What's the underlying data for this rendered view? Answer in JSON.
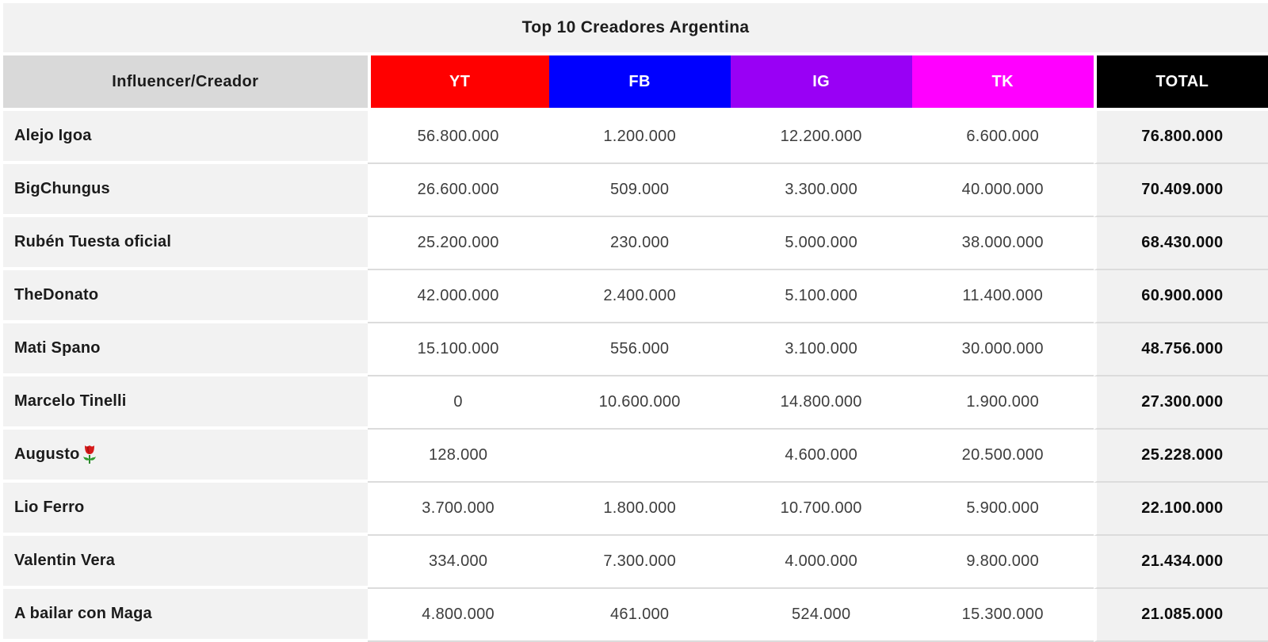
{
  "table": {
    "title": "Top 10 Creadores Argentina",
    "columns": [
      {
        "key": "name",
        "label": "Influencer/Creador",
        "bg": "#d9d9d9",
        "fg": "#1b1b1b"
      },
      {
        "key": "yt",
        "label": "YT",
        "bg": "#ff0000",
        "fg": "#ffffff"
      },
      {
        "key": "fb",
        "label": "FB",
        "bg": "#0000ff",
        "fg": "#ffffff"
      },
      {
        "key": "ig",
        "label": "IG",
        "bg": "#9900f5",
        "fg": "#ffffff"
      },
      {
        "key": "tk",
        "label": "TK",
        "bg": "#ff00ff",
        "fg": "#ffffff"
      },
      {
        "key": "total",
        "label": "TOTAL",
        "bg": "#000000",
        "fg": "#ffffff"
      }
    ],
    "rows": [
      {
        "name": "Alejo Igoa",
        "yt": "56.800.000",
        "fb": "1.200.000",
        "ig": "12.200.000",
        "tk": "6.600.000",
        "total": "76.800.000"
      },
      {
        "name": "BigChungus",
        "yt": "26.600.000",
        "fb": "509.000",
        "ig": "3.300.000",
        "tk": "40.000.000",
        "total": "70.409.000"
      },
      {
        "name": "Rubén Tuesta oficial",
        "yt": "25.200.000",
        "fb": "230.000",
        "ig": "5.000.000",
        "tk": "38.000.000",
        "total": "68.430.000"
      },
      {
        "name": "TheDonato",
        "yt": "42.000.000",
        "fb": "2.400.000",
        "ig": "5.100.000",
        "tk": "11.400.000",
        "total": "60.900.000"
      },
      {
        "name": "Mati Spano",
        "yt": "15.100.000",
        "fb": "556.000",
        "ig": "3.100.000",
        "tk": "30.000.000",
        "total": "48.756.000"
      },
      {
        "name": "Marcelo Tinelli",
        "yt": "0",
        "fb": "10.600.000",
        "ig": "14.800.000",
        "tk": "1.900.000",
        "total": "27.300.000"
      },
      {
        "name": "Augusto🌹",
        "yt": "128.000",
        "fb": "",
        "ig": "4.600.000",
        "tk": "20.500.000",
        "total": "25.228.000"
      },
      {
        "name": "Lio Ferro",
        "yt": "3.700.000",
        "fb": "1.800.000",
        "ig": "10.700.000",
        "tk": "5.900.000",
        "total": "22.100.000"
      },
      {
        "name": "Valentin Vera",
        "yt": "334.000",
        "fb": "7.300.000",
        "ig": "4.000.000",
        "tk": "9.800.000",
        "total": "21.434.000"
      },
      {
        "name": "A bailar con Maga",
        "yt": "4.800.000",
        "fb": "461.000",
        "ig": "524.000",
        "tk": "15.300.000",
        "total": "21.085.000"
      }
    ]
  },
  "chart_data": {
    "type": "table",
    "title": "Top 10 Creadores Argentina",
    "columns": [
      "Influencer/Creador",
      "YT",
      "FB",
      "IG",
      "TK",
      "TOTAL"
    ],
    "rows": [
      {
        "name": "Alejo Igoa",
        "yt": 56800000,
        "fb": 1200000,
        "ig": 12200000,
        "tk": 6600000,
        "total": 76800000
      },
      {
        "name": "BigChungus",
        "yt": 26600000,
        "fb": 509000,
        "ig": 3300000,
        "tk": 40000000,
        "total": 70409000
      },
      {
        "name": "Rubén Tuesta oficial",
        "yt": 25200000,
        "fb": 230000,
        "ig": 5000000,
        "tk": 38000000,
        "total": 68430000
      },
      {
        "name": "TheDonato",
        "yt": 42000000,
        "fb": 2400000,
        "ig": 5100000,
        "tk": 11400000,
        "total": 60900000
      },
      {
        "name": "Mati Spano",
        "yt": 15100000,
        "fb": 556000,
        "ig": 3100000,
        "tk": 30000000,
        "total": 48756000
      },
      {
        "name": "Marcelo Tinelli",
        "yt": 0,
        "fb": 10600000,
        "ig": 14800000,
        "tk": 1900000,
        "total": 27300000
      },
      {
        "name": "Augusto🌹",
        "yt": 128000,
        "fb": null,
        "ig": 4600000,
        "tk": 20500000,
        "total": 25228000
      },
      {
        "name": "Lio Ferro",
        "yt": 3700000,
        "fb": 1800000,
        "ig": 10700000,
        "tk": 5900000,
        "total": 22100000
      },
      {
        "name": "Valentin Vera",
        "yt": 334000,
        "fb": 7300000,
        "ig": 4000000,
        "tk": 9800000,
        "total": 21434000
      },
      {
        "name": "A bailar con Maga",
        "yt": 4800000,
        "fb": 461000,
        "ig": 524000,
        "tk": 15300000,
        "total": 21085000
      }
    ],
    "notes": "Follower counts per platform; numbers shown with dot thousand separators; TOTAL column bold on light gray"
  }
}
